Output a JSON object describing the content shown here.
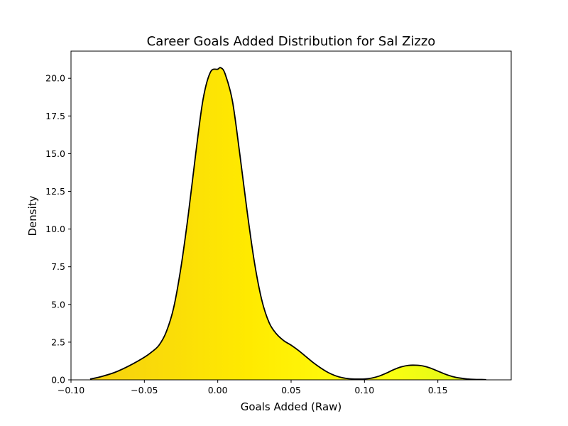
{
  "chart_data": {
    "type": "area",
    "title": "Career Goals Added Distribution for Sal Zizzo",
    "xlabel": "Goals Added (Raw)",
    "ylabel": "Density",
    "xlim": [
      -0.1,
      0.2
    ],
    "ylim": [
      0,
      21.8
    ],
    "grid": false,
    "legend": "none",
    "x_ticks": [
      {
        "value": -0.1,
        "label": "−0.10"
      },
      {
        "value": -0.05,
        "label": "−0.05"
      },
      {
        "value": 0.0,
        "label": "0.00"
      },
      {
        "value": 0.05,
        "label": "0.05"
      },
      {
        "value": 0.1,
        "label": "0.10"
      },
      {
        "value": 0.15,
        "label": "0.15"
      }
    ],
    "y_ticks": [
      {
        "value": 0,
        "label": "0.0"
      },
      {
        "value": 2.5,
        "label": "2.5"
      },
      {
        "value": 5,
        "label": "5.0"
      },
      {
        "value": 7.5,
        "label": "7.5"
      },
      {
        "value": 10,
        "label": "10.0"
      },
      {
        "value": 12.5,
        "label": "12.5"
      },
      {
        "value": 15,
        "label": "15.0"
      },
      {
        "value": 17.5,
        "label": "17.5"
      },
      {
        "value": 20,
        "label": "20.0"
      }
    ],
    "series": [
      {
        "line_color": "#000000",
        "fill_gradient": [
          "#f5cf10",
          "#ffea00",
          "#ffff10",
          "#d8f81a"
        ],
        "x": [
          -0.087,
          -0.08,
          -0.07,
          -0.06,
          -0.05,
          -0.045,
          -0.04,
          -0.035,
          -0.03,
          -0.025,
          -0.02,
          -0.015,
          -0.01,
          -0.005,
          0.0,
          0.002,
          0.005,
          0.01,
          0.015,
          0.02,
          0.025,
          0.03,
          0.035,
          0.04,
          0.045,
          0.05,
          0.055,
          0.06,
          0.065,
          0.07,
          0.075,
          0.08,
          0.085,
          0.09,
          0.095,
          0.1,
          0.105,
          0.11,
          0.115,
          0.12,
          0.125,
          0.13,
          0.135,
          0.14,
          0.145,
          0.15,
          0.155,
          0.16,
          0.165,
          0.17,
          0.175,
          0.18,
          0.183
        ],
        "y": [
          0.05,
          0.2,
          0.5,
          0.95,
          1.5,
          1.85,
          2.3,
          3.2,
          4.8,
          7.5,
          11.0,
          15.0,
          18.6,
          20.4,
          20.6,
          20.7,
          20.3,
          18.5,
          15.0,
          11.2,
          7.8,
          5.3,
          3.8,
          3.05,
          2.6,
          2.3,
          1.95,
          1.55,
          1.15,
          0.8,
          0.5,
          0.28,
          0.14,
          0.07,
          0.05,
          0.06,
          0.12,
          0.25,
          0.45,
          0.68,
          0.86,
          0.96,
          0.97,
          0.92,
          0.78,
          0.58,
          0.38,
          0.22,
          0.12,
          0.06,
          0.03,
          0.02,
          0.01
        ]
      }
    ]
  }
}
